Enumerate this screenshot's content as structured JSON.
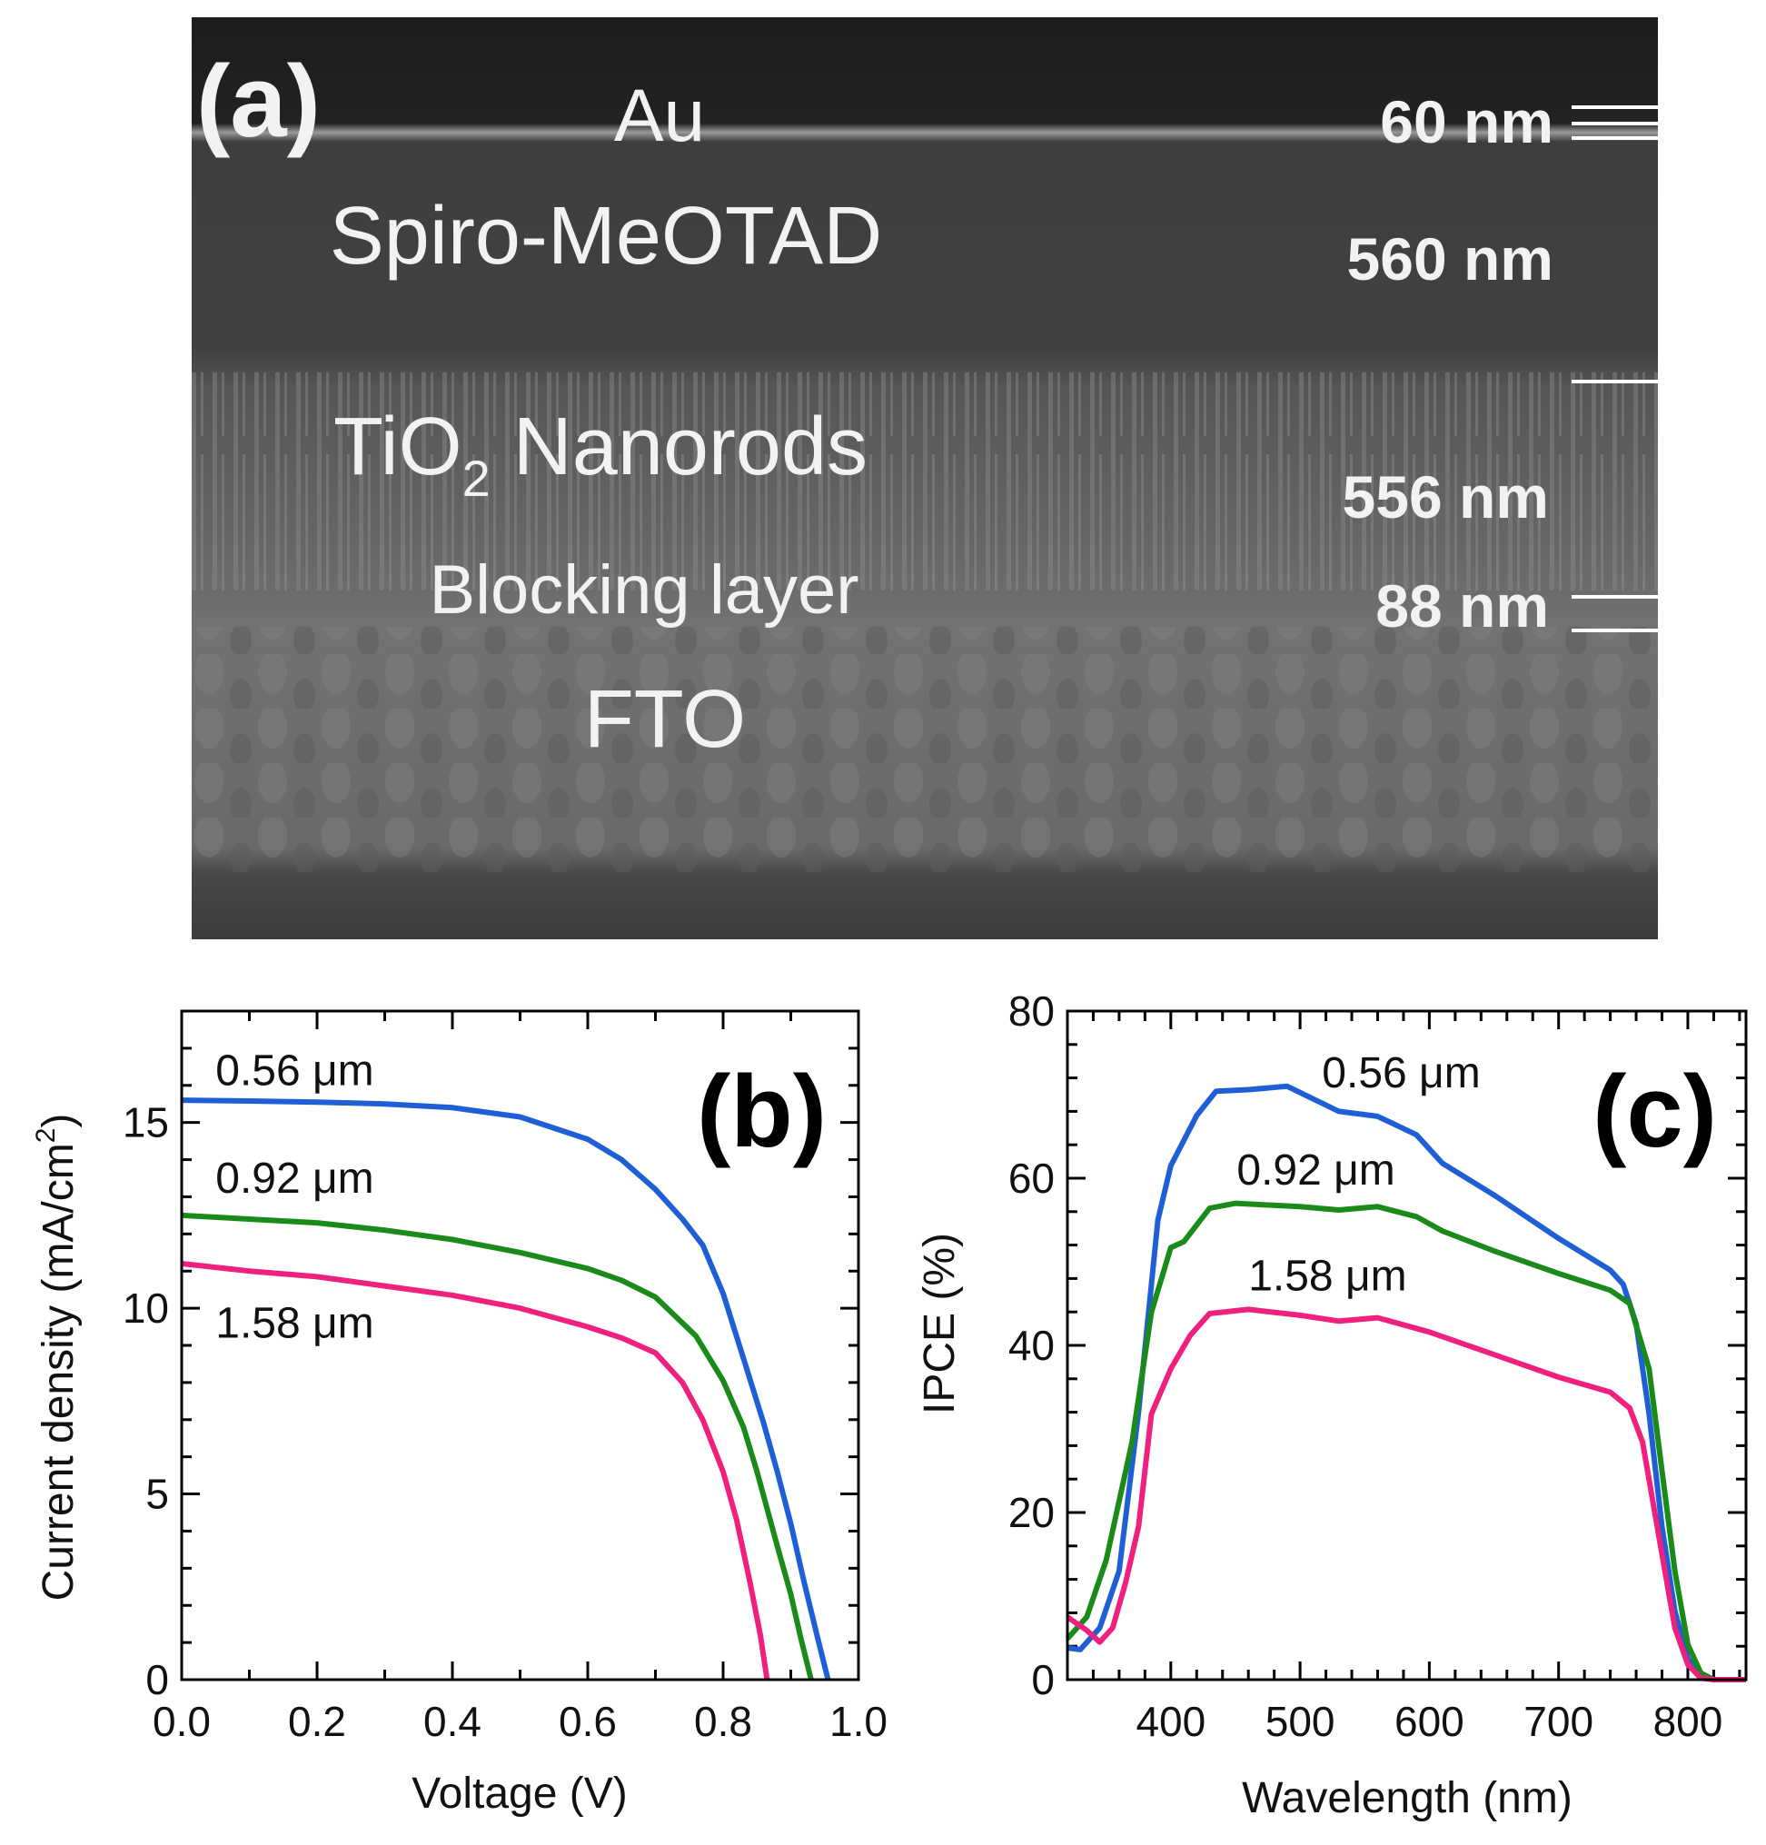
{
  "sem": {
    "panel_label": "(a)",
    "layers": {
      "au": "Au",
      "spiro": "Spiro-MeOTAD",
      "tio2_prefix": "TiO",
      "tio2_sub": "2",
      "tio2_suffix": " Nanorods",
      "blocking": "Blocking layer",
      "fto": "FTO"
    },
    "thickness": {
      "au": "60 nm",
      "spiro": "560 nm",
      "tio2": "556 nm",
      "blocking": "88 nm"
    }
  },
  "chart_data": [
    {
      "type": "line",
      "panel_label": "(b)",
      "xlabel": "Voltage (V)",
      "ylabel": "Current density (mA/cm",
      "ylabel_sup": "2",
      "ylabel_end": ")",
      "xlim": [
        0,
        1.0
      ],
      "ylim": [
        0,
        18
      ],
      "xticks": [
        0.0,
        0.2,
        0.4,
        0.6,
        0.8,
        1.0
      ],
      "xtick_labels": [
        "0.0",
        "0.2",
        "0.4",
        "0.6",
        "0.8",
        "1.0"
      ],
      "yticks": [
        0,
        5,
        10,
        15
      ],
      "ytick_labels": [
        "0",
        "5",
        "10",
        "15"
      ],
      "grid": false,
      "series": [
        {
          "name": "0.56 μm",
          "color": "#1f5fd6",
          "label_pos": [
            0.05,
            16.4
          ],
          "points": [
            [
              0,
              15.6
            ],
            [
              0.1,
              15.58
            ],
            [
              0.2,
              15.55
            ],
            [
              0.3,
              15.5
            ],
            [
              0.4,
              15.4
            ],
            [
              0.5,
              15.15
            ],
            [
              0.6,
              14.55
            ],
            [
              0.65,
              14.0
            ],
            [
              0.7,
              13.2
            ],
            [
              0.74,
              12.4
            ],
            [
              0.77,
              11.7
            ],
            [
              0.8,
              10.4
            ],
            [
              0.83,
              8.65
            ],
            [
              0.86,
              6.9
            ],
            [
              0.88,
              5.6
            ],
            [
              0.9,
              4.2
            ],
            [
              0.92,
              2.6
            ],
            [
              0.94,
              1.1
            ],
            [
              0.955,
              0
            ]
          ]
        },
        {
          "name": "0.92 μm",
          "color": "#1a8a1a",
          "label_pos": [
            0.05,
            13.5
          ],
          "points": [
            [
              0,
              12.5
            ],
            [
              0.1,
              12.4
            ],
            [
              0.2,
              12.3
            ],
            [
              0.3,
              12.1
            ],
            [
              0.4,
              11.85
            ],
            [
              0.5,
              11.5
            ],
            [
              0.6,
              11.07
            ],
            [
              0.65,
              10.75
            ],
            [
              0.7,
              10.3
            ],
            [
              0.76,
              9.25
            ],
            [
              0.8,
              8.05
            ],
            [
              0.83,
              6.8
            ],
            [
              0.85,
              5.6
            ],
            [
              0.88,
              3.6
            ],
            [
              0.9,
              2.3
            ],
            [
              0.915,
              1.1
            ],
            [
              0.93,
              0
            ]
          ]
        },
        {
          "name": "1.58 μm",
          "color": "#f0207f",
          "label_pos": [
            0.05,
            9.6
          ],
          "points": [
            [
              0,
              11.2
            ],
            [
              0.1,
              11.0
            ],
            [
              0.2,
              10.85
            ],
            [
              0.3,
              10.6
            ],
            [
              0.4,
              10.35
            ],
            [
              0.5,
              10.0
            ],
            [
              0.6,
              9.5
            ],
            [
              0.65,
              9.2
            ],
            [
              0.7,
              8.8
            ],
            [
              0.74,
              8.0
            ],
            [
              0.77,
              7.0
            ],
            [
              0.8,
              5.6
            ],
            [
              0.82,
              4.3
            ],
            [
              0.84,
              2.6
            ],
            [
              0.855,
              1.2
            ],
            [
              0.865,
              0
            ]
          ]
        }
      ]
    },
    {
      "type": "line",
      "panel_label": "(c)",
      "xlabel": "Wavelength (nm)",
      "ylabel": "IPCE (%)",
      "xlim": [
        320,
        845
      ],
      "ylim": [
        0,
        80
      ],
      "xticks": [
        400,
        500,
        600,
        700,
        800
      ],
      "xtick_labels": [
        "400",
        "500",
        "600",
        "700",
        "800"
      ],
      "yticks": [
        0,
        20,
        40,
        60,
        80
      ],
      "ytick_labels": [
        "0",
        "20",
        "40",
        "60",
        "80"
      ],
      "grid": false,
      "series": [
        {
          "name": "0.56 μm",
          "color": "#1f5fd6",
          "label_pos": [
            517,
            72.6
          ],
          "points": [
            [
              320,
              3.8
            ],
            [
              330,
              3.6
            ],
            [
              345,
              6.2
            ],
            [
              360,
              13
            ],
            [
              375,
              32
            ],
            [
              390,
              55
            ],
            [
              400,
              61.5
            ],
            [
              420,
              67.5
            ],
            [
              435,
              70.4
            ],
            [
              460,
              70.6
            ],
            [
              490,
              71
            ],
            [
              510,
              69.5
            ],
            [
              530,
              68
            ],
            [
              560,
              67.4
            ],
            [
              590,
              65.2
            ],
            [
              610,
              61.8
            ],
            [
              650,
              58
            ],
            [
              700,
              52.8
            ],
            [
              740,
              49
            ],
            [
              750,
              47.3
            ],
            [
              760,
              42.6
            ],
            [
              770,
              31.8
            ],
            [
              780,
              18.3
            ],
            [
              790,
              8.2
            ],
            [
              800,
              2.5
            ],
            [
              810,
              0.5
            ],
            [
              820,
              0
            ],
            [
              845,
              0
            ]
          ]
        },
        {
          "name": "0.92 μm",
          "color": "#1a8a1a",
          "label_pos": [
            451,
            61
          ],
          "points": [
            [
              320,
              4.9
            ],
            [
              335,
              7.5
            ],
            [
              350,
              14.3
            ],
            [
              370,
              28.4
            ],
            [
              385,
              44
            ],
            [
              400,
              51.7
            ],
            [
              410,
              52.4
            ],
            [
              430,
              56.4
            ],
            [
              450,
              57
            ],
            [
              500,
              56.6
            ],
            [
              530,
              56.2
            ],
            [
              560,
              56.6
            ],
            [
              590,
              55.4
            ],
            [
              610,
              53.7
            ],
            [
              650,
              51.3
            ],
            [
              700,
              48.6
            ],
            [
              740,
              46.6
            ],
            [
              755,
              45
            ],
            [
              770,
              37.2
            ],
            [
              780,
              25
            ],
            [
              790,
              13
            ],
            [
              800,
              4.2
            ],
            [
              810,
              0.8
            ],
            [
              820,
              0
            ],
            [
              845,
              0
            ]
          ]
        },
        {
          "name": "1.58 μm",
          "color": "#f0207f",
          "label_pos": [
            460,
            48.3
          ],
          "points": [
            [
              320,
              7.5
            ],
            [
              335,
              5.9
            ],
            [
              345,
              4.5
            ],
            [
              355,
              6.2
            ],
            [
              365,
              11.6
            ],
            [
              375,
              18.3
            ],
            [
              385,
              31.8
            ],
            [
              400,
              37.2
            ],
            [
              415,
              41.2
            ],
            [
              430,
              43.8
            ],
            [
              460,
              44.3
            ],
            [
              500,
              43.6
            ],
            [
              530,
              42.9
            ],
            [
              560,
              43.3
            ],
            [
              600,
              41.6
            ],
            [
              650,
              38.9
            ],
            [
              700,
              36.2
            ],
            [
              740,
              34.4
            ],
            [
              755,
              32.5
            ],
            [
              765,
              28.4
            ],
            [
              780,
              15
            ],
            [
              790,
              6.2
            ],
            [
              800,
              1.8
            ],
            [
              810,
              0.2
            ],
            [
              820,
              0
            ],
            [
              845,
              0
            ]
          ]
        }
      ]
    }
  ]
}
